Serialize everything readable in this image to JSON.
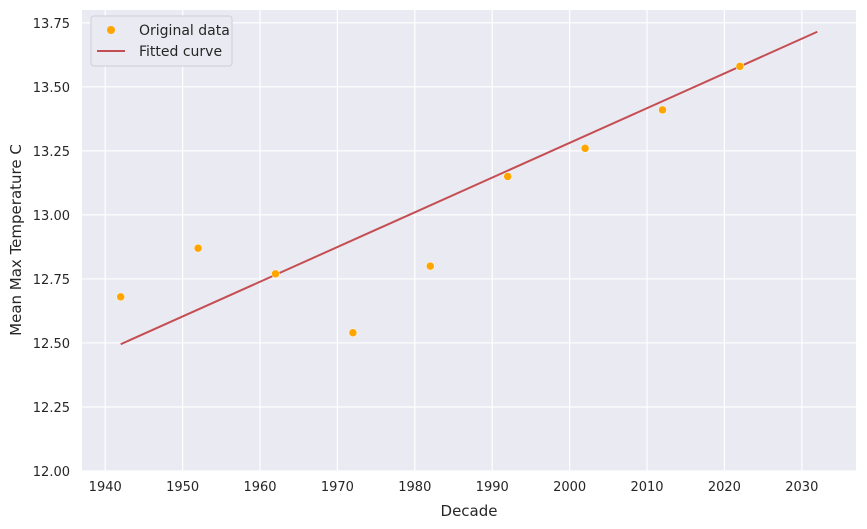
{
  "chart_data": {
    "type": "scatter",
    "xlabel": "Decade",
    "ylabel": "Mean Max Temperature C",
    "xlim": [
      1937,
      2037
    ],
    "ylim": [
      12.0,
      13.8
    ],
    "xticks": [
      1940,
      1950,
      1960,
      1970,
      1980,
      1990,
      2000,
      2010,
      2020,
      2030
    ],
    "yticks": [
      12.0,
      12.25,
      12.5,
      12.75,
      13.0,
      13.25,
      13.5,
      13.75
    ],
    "ytick_labels": [
      "12.00",
      "12.25",
      "12.50",
      "12.75",
      "13.00",
      "13.25",
      "13.50",
      "13.75"
    ],
    "grid": true,
    "background": "#eaeaf2",
    "legend_position": "top-left",
    "series": [
      {
        "name": "Original data",
        "kind": "scatter",
        "color": "#ffa500",
        "x": [
          1942,
          1952,
          1962,
          1972,
          1982,
          1992,
          2002,
          2012,
          2022
        ],
        "y": [
          12.68,
          12.87,
          12.77,
          12.54,
          12.8,
          13.15,
          13.26,
          13.41,
          13.58
        ]
      },
      {
        "name": "Fitted curve",
        "kind": "line",
        "color": "#c44e52",
        "x": [
          1942,
          2032
        ],
        "y": [
          12.495,
          13.715
        ]
      }
    ]
  }
}
